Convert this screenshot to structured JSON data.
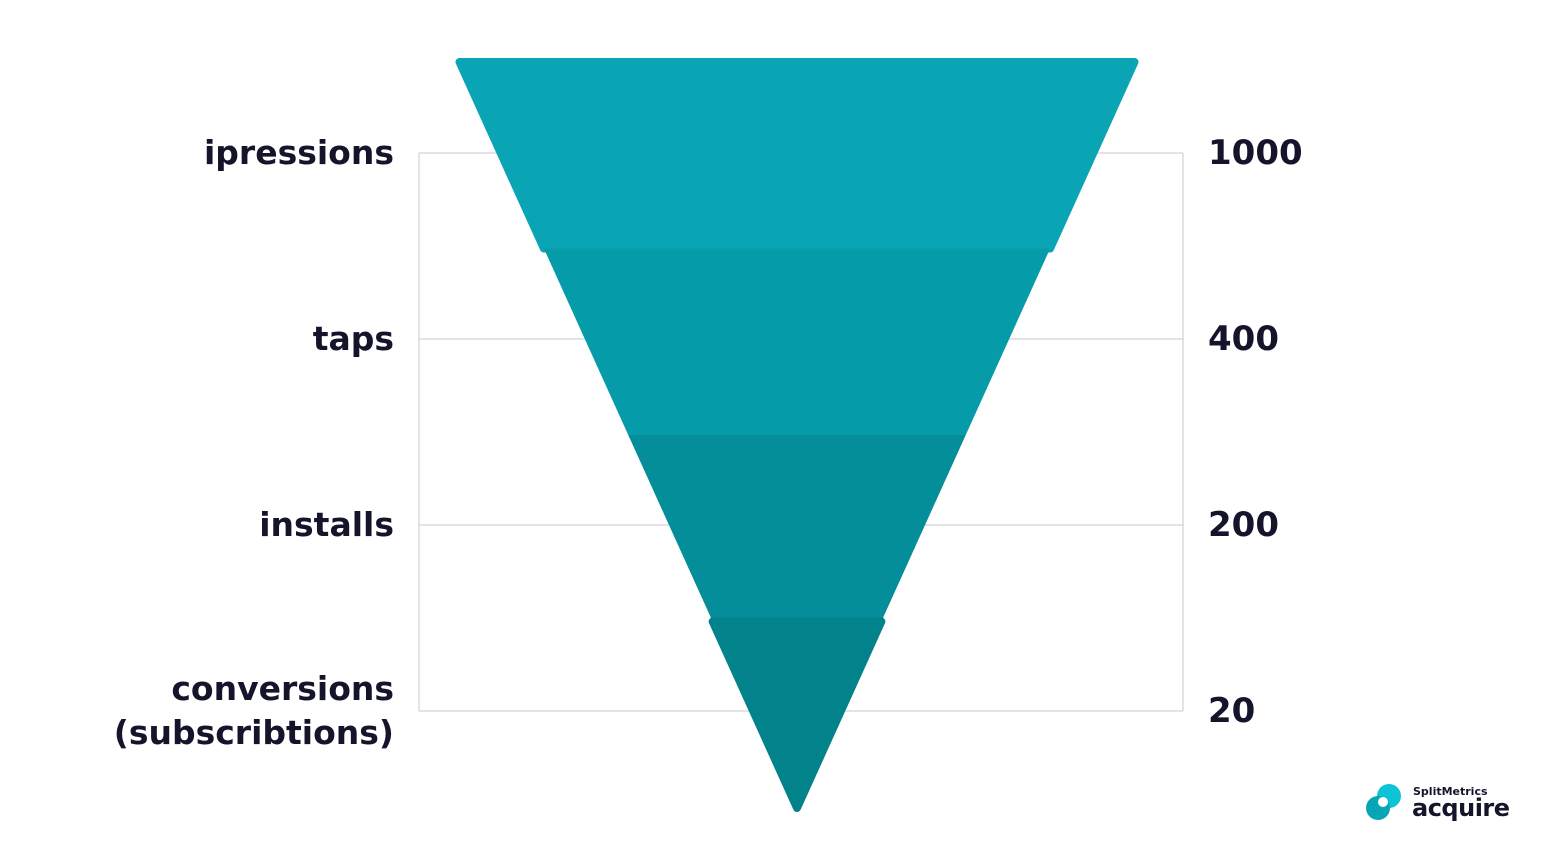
{
  "chart_data": {
    "type": "funnel",
    "categories": [
      "ipressions",
      "taps",
      "installs",
      "conversions (subscribtions)"
    ],
    "values": [
      1000,
      400,
      200,
      20
    ],
    "colors": [
      "#09a5b5",
      "#059ba8",
      "#038e99",
      "#02838b"
    ]
  },
  "brand": {
    "name": "SplitMetrics",
    "product": "acquire"
  }
}
